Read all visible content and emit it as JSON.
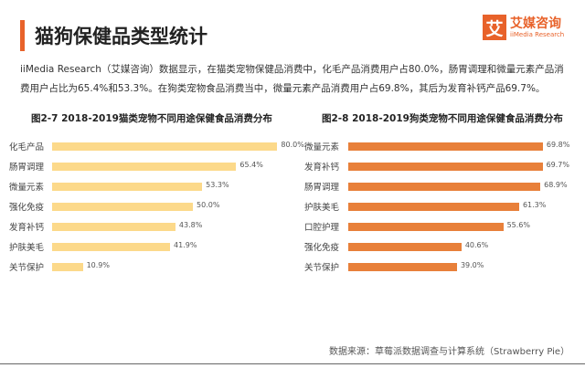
{
  "header": {
    "title": "猫狗保健品类型统计",
    "logo_glyph": "艾",
    "logo_cn": "艾媒咨询",
    "logo_en": "iiMedia Research"
  },
  "description": "iiMedia Research（艾媒咨询）数据显示，在猫类宠物保健品消费中，化毛产品消费用户占80.0%，肠胃调理和微量元素产品消费用户占比为65.4%和53.3%。在狗类宠物食品消费当中，微量元素产品消费用户占69.8%，其后为发育补钙产品69.7%。",
  "source": "数据来源：草莓派数据调查与计算系统（Strawberry Pie）",
  "chart_data": [
    {
      "type": "bar",
      "orientation": "horizontal",
      "title": "图2-7 2018-2019猫类宠物不同用途保健食品消费分布",
      "color": "#fcd98a",
      "unit": "%",
      "categories": [
        "化毛产品",
        "肠胃调理",
        "微量元素",
        "强化免疫",
        "发育补钙",
        "护肤美毛",
        "关节保护"
      ],
      "values": [
        80.0,
        65.4,
        53.3,
        50.0,
        43.8,
        41.9,
        10.9
      ],
      "labels": [
        "80.0%",
        "65.4%",
        "53.3%",
        "50.0%",
        "43.8%",
        "41.9%",
        "10.9%"
      ]
    },
    {
      "type": "bar",
      "orientation": "horizontal",
      "title": "图2-8 2018-2019狗类宠物不同用途保健食品消费分布",
      "color": "#e8803a",
      "unit": "%",
      "categories": [
        "微量元素",
        "发育补钙",
        "肠胃调理",
        "护肤美毛",
        "口腔护理",
        "强化免疫",
        "关节保护"
      ],
      "values": [
        69.8,
        69.7,
        68.9,
        61.3,
        55.6,
        40.6,
        39.0
      ],
      "labels": [
        "69.8%",
        "69.7%",
        "68.9%",
        "61.3%",
        "55.6%",
        "40.6%",
        "39.0%"
      ]
    }
  ]
}
